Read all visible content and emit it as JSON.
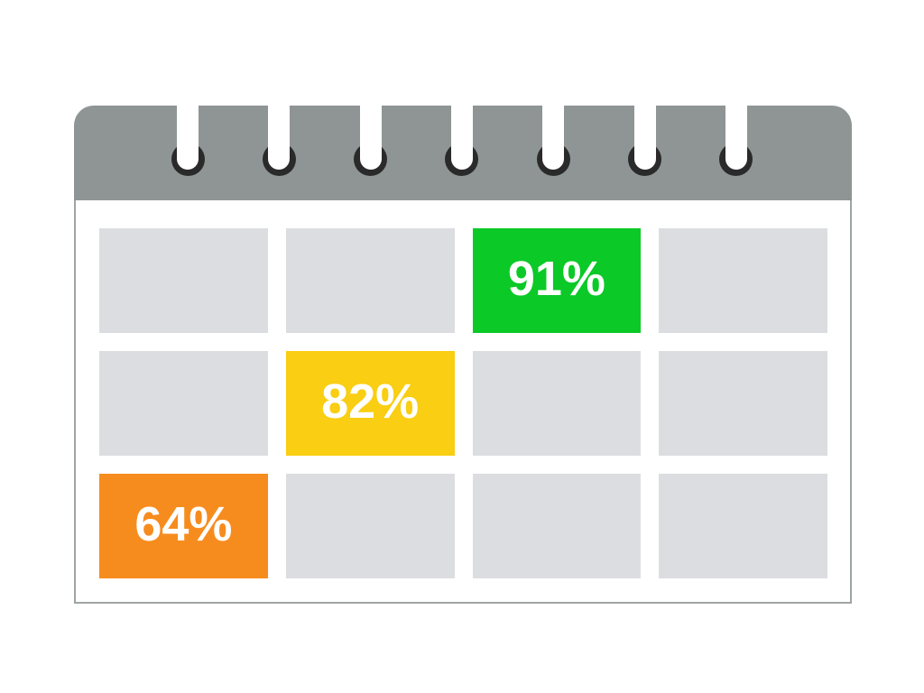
{
  "illustration": {
    "kind": "spiral-bound wall calendar infographic",
    "header": {
      "ring_count": 7
    },
    "grid": {
      "columns": 4,
      "rows": 3,
      "cells": [
        {
          "row": 1,
          "col": 1,
          "label": "",
          "color": "cell_gray"
        },
        {
          "row": 1,
          "col": 2,
          "label": "",
          "color": "cell_gray"
        },
        {
          "row": 1,
          "col": 3,
          "label": "91%",
          "color": "green"
        },
        {
          "row": 1,
          "col": 4,
          "label": "",
          "color": "cell_gray"
        },
        {
          "row": 2,
          "col": 1,
          "label": "",
          "color": "cell_gray"
        },
        {
          "row": 2,
          "col": 2,
          "label": "82%",
          "color": "yellow"
        },
        {
          "row": 2,
          "col": 3,
          "label": "",
          "color": "cell_gray"
        },
        {
          "row": 2,
          "col": 4,
          "label": "",
          "color": "cell_gray"
        },
        {
          "row": 3,
          "col": 1,
          "label": "64%",
          "color": "orange"
        },
        {
          "row": 3,
          "col": 2,
          "label": "",
          "color": "cell_gray"
        },
        {
          "row": 3,
          "col": 3,
          "label": "",
          "color": "cell_gray"
        },
        {
          "row": 3,
          "col": 4,
          "label": "",
          "color": "cell_gray"
        }
      ],
      "highlighted_values": [
        "91%",
        "82%",
        "64%"
      ]
    },
    "palette": {
      "header_gray": "#8F9595",
      "ring_dark": "#2A2A2A",
      "cell_gray": "#DCDDE0",
      "green": "#0BC927",
      "yellow": "#F9CE13",
      "orange": "#F78C1E",
      "border_gray": "#9FA4A4",
      "text_white": "#FFFFFF",
      "background": "#FFFFFF"
    }
  }
}
